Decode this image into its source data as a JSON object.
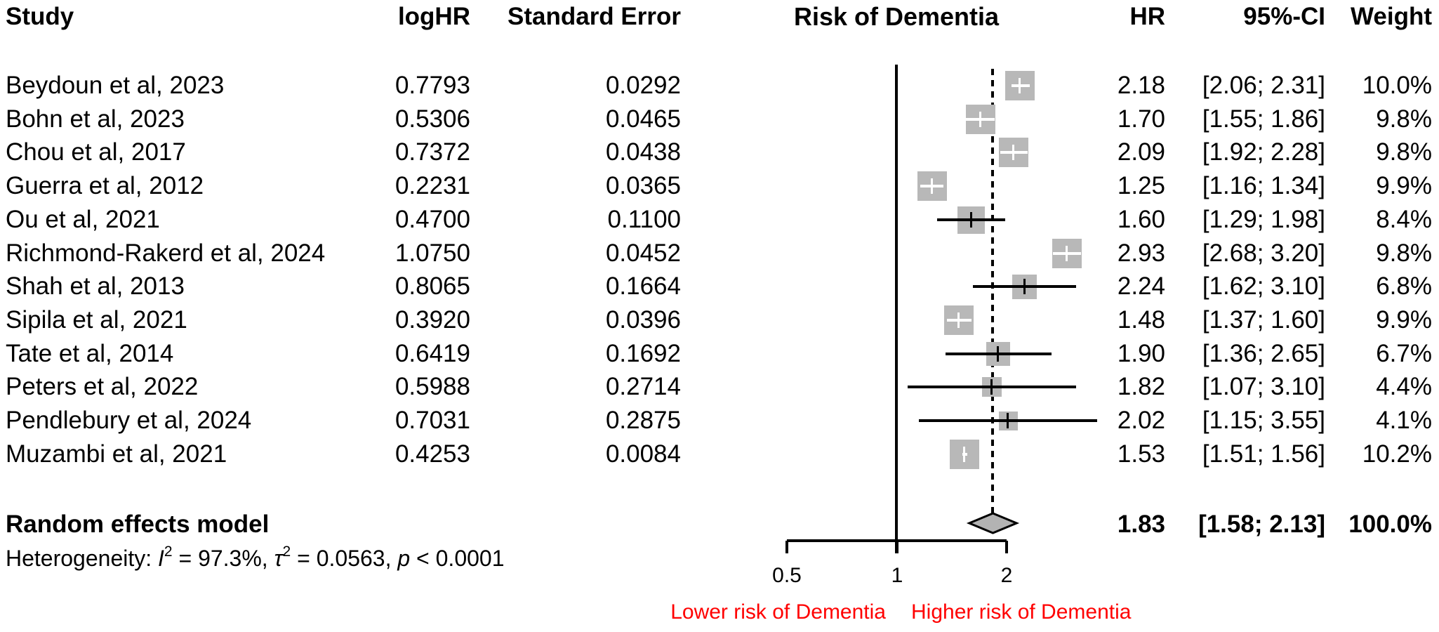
{
  "columns": {
    "study": "Study",
    "loghr": "logHR",
    "se": "Standard Error",
    "plot": "Risk of Dementia",
    "hr": "HR",
    "ci": "95%-CI",
    "weight": "Weight"
  },
  "chart_data": {
    "type": "forest",
    "title": "Risk of Dementia",
    "x_scale": "log",
    "x_ticks": [
      0.5,
      1,
      2
    ],
    "x_tick_labels": [
      "0.5",
      "1",
      "2"
    ],
    "reference_line": 1,
    "pooled_dashed_line": 1.83,
    "studies": [
      {
        "study": "Beydoun et al, 2023",
        "loghr": "0.7793",
        "se": "0.0292",
        "hr": "2.18",
        "ci": "[2.06; 2.31]",
        "weight": "10.0%"
      },
      {
        "study": "Bohn et al, 2023",
        "loghr": "0.5306",
        "se": "0.0465",
        "hr": "1.70",
        "ci": "[1.55; 1.86]",
        "weight": "9.8%"
      },
      {
        "study": "Chou et al, 2017",
        "loghr": "0.7372",
        "se": "0.0438",
        "hr": "2.09",
        "ci": "[1.92; 2.28]",
        "weight": "9.8%"
      },
      {
        "study": "Guerra et al, 2012",
        "loghr": "0.2231",
        "se": "0.0365",
        "hr": "1.25",
        "ci": "[1.16; 1.34]",
        "weight": "9.9%"
      },
      {
        "study": "Ou et al, 2021",
        "loghr": "0.4700",
        "se": "0.1100",
        "hr": "1.60",
        "ci": "[1.29; 1.98]",
        "weight": "8.4%"
      },
      {
        "study": "Richmond-Rakerd et al, 2024",
        "loghr": "1.0750",
        "se": "0.0452",
        "hr": "2.93",
        "ci": "[2.68; 3.20]",
        "weight": "9.8%"
      },
      {
        "study": "Shah et al, 2013",
        "loghr": "0.8065",
        "se": "0.1664",
        "hr": "2.24",
        "ci": "[1.62; 3.10]",
        "weight": "6.8%"
      },
      {
        "study": "Sipila et al, 2021",
        "loghr": "0.3920",
        "se": "0.0396",
        "hr": "1.48",
        "ci": "[1.37; 1.60]",
        "weight": "9.9%"
      },
      {
        "study": "Tate et al, 2014",
        "loghr": "0.6419",
        "se": "0.1692",
        "hr": "1.90",
        "ci": "[1.36; 2.65]",
        "weight": "6.7%"
      },
      {
        "study": "Peters et al, 2022",
        "loghr": "0.5988",
        "se": "0.2714",
        "hr": "1.82",
        "ci": "[1.07; 3.10]",
        "weight": "4.4%"
      },
      {
        "study": "Pendlebury et al, 2024",
        "loghr": "0.7031",
        "se": "0.2875",
        "hr": "2.02",
        "ci": "[1.15; 3.55]",
        "weight": "4.1%"
      },
      {
        "study": "Muzambi et al, 2021",
        "loghr": "0.4253",
        "se": "0.0084",
        "hr": "1.53",
        "ci": "[1.51; 1.56]",
        "weight": "10.2%"
      }
    ],
    "pooled": {
      "label": "Random effects model",
      "hr": "1.83",
      "ci": "[1.58; 2.13]",
      "weight": "100.0%"
    },
    "heterogeneity": {
      "prefix": "Heterogeneity: ",
      "i_symbol": "I",
      "i_sup": "2",
      "i_value": " = 97.3%, ",
      "tau_symbol": "τ",
      "tau_sup": "2",
      "tau_value": " = 0.0563, ",
      "p_symbol": "p",
      "p_value": " < 0.0001"
    },
    "x_axis_labels": {
      "lower": "Lower risk of Dementia",
      "higher": "Higher risk of Dementia"
    },
    "colors": {
      "square_fill": "#b8b8b8",
      "diamond_fill": "#b3b3b3",
      "risk_label_red": "#ff0000",
      "line_black": "#000000"
    }
  }
}
